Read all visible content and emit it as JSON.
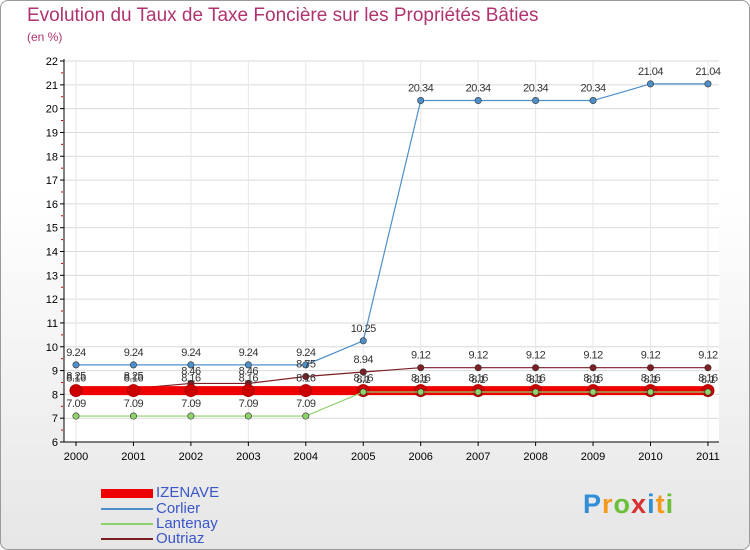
{
  "chart_data": {
    "type": "line",
    "title": "Evolution du Taux de Taxe Foncière sur les Propriétés Bâties",
    "ylabel": "(en %)",
    "xlabel": "",
    "ylim": [
      6,
      22
    ],
    "yticks": [
      6,
      7,
      8,
      9,
      10,
      11,
      12,
      13,
      14,
      15,
      16,
      17,
      18,
      19,
      20,
      21,
      22
    ],
    "categories": [
      "2000",
      "2001",
      "2002",
      "2003",
      "2004",
      "2005",
      "2006",
      "2007",
      "2008",
      "2009",
      "2010",
      "2011"
    ],
    "series": [
      {
        "name": "IZENAVE",
        "color": "#ee0000",
        "values": [
          8.16,
          8.16,
          8.16,
          8.16,
          8.16,
          8.16,
          8.16,
          8.16,
          8.16,
          8.16,
          8.16,
          8.16
        ],
        "labels": [
          "8.16",
          "8.16",
          "8.16",
          "8.16",
          "8.16",
          "8.16",
          "8.16",
          "8.16",
          "8.16",
          "8.16",
          "8.16",
          "8.16"
        ]
      },
      {
        "name": "Corlier",
        "color": "#4f8fc8",
        "values": [
          9.24,
          9.24,
          9.24,
          9.24,
          9.24,
          10.25,
          20.34,
          20.34,
          20.34,
          20.34,
          21.04,
          21.04
        ],
        "labels": [
          "9.24",
          "9.24",
          "9.24",
          "9.24",
          "9.24",
          "10.25",
          "20.34",
          "20.34",
          "20.34",
          "20.34",
          "21.04",
          "21.04"
        ]
      },
      {
        "name": "Lantenay",
        "color": "#8fd16a",
        "values": [
          7.09,
          7.09,
          7.09,
          7.09,
          7.09,
          8.1,
          8.1,
          8.1,
          8.1,
          8.1,
          8.1,
          8.1
        ],
        "labels": [
          "7.09",
          "7.09",
          "7.09",
          "7.09",
          "7.09",
          "8.1",
          "8.1",
          "8.1",
          "8.1",
          "8.1",
          "8.1",
          "8.1"
        ]
      },
      {
        "name": "Outriaz",
        "color": "#7b1f24",
        "values": [
          8.25,
          8.25,
          8.46,
          8.46,
          8.75,
          8.94,
          9.12,
          9.12,
          9.12,
          9.12,
          9.12,
          9.12
        ],
        "labels": [
          "8.25",
          "8.25",
          "8.46",
          "8.46",
          "8.75",
          "8.94",
          "9.12",
          "9.12",
          "9.12",
          "9.12",
          "9.12",
          "9.12"
        ]
      }
    ]
  },
  "logo": {
    "text": "Proxiti"
  }
}
